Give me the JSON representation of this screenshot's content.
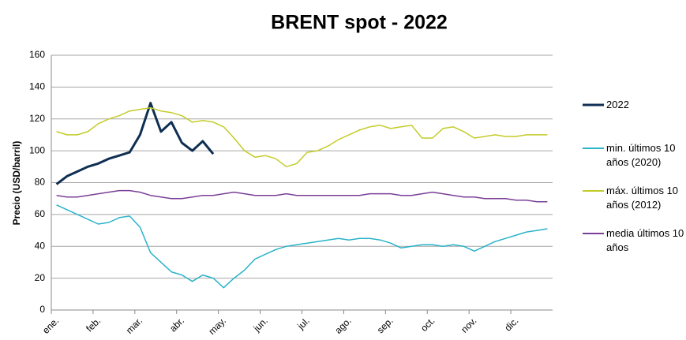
{
  "chart_data": {
    "type": "line",
    "title": "BRENT spot - 2022",
    "y_label": "Precio (USD/barril)",
    "categories": [
      "ene.",
      null,
      null,
      null,
      "feb.",
      null,
      null,
      null,
      "mar.",
      null,
      null,
      null,
      "abr.",
      null,
      null,
      null,
      "may.",
      null,
      null,
      null,
      "jun.",
      null,
      null,
      null,
      "jul.",
      null,
      null,
      null,
      "ago.",
      null,
      null,
      null,
      "sep.",
      null,
      null,
      null,
      "oct.",
      null,
      null,
      null,
      "nov.",
      null,
      null,
      null,
      "dic.",
      null,
      null,
      null
    ],
    "ylim": [
      0,
      160
    ],
    "yticks": [
      0,
      20,
      40,
      60,
      80,
      100,
      120,
      140,
      160
    ],
    "grid": true,
    "legend": "right",
    "series": [
      {
        "name": "2022",
        "color": "#0f2f52",
        "values": [
          79,
          84,
          87,
          90,
          92,
          95,
          97,
          99,
          110,
          130,
          112,
          118,
          105,
          100,
          106,
          98,
          null,
          null,
          null,
          null,
          null,
          null,
          null,
          null,
          null,
          null,
          null,
          null,
          null,
          null,
          null,
          null,
          null,
          null,
          null,
          null,
          null,
          null,
          null,
          null,
          null,
          null,
          null,
          null,
          null,
          null,
          null,
          null
        ]
      },
      {
        "name": "min. últimos 10 años (2020)",
        "color": "#2ab3c9",
        "values": [
          66,
          63,
          60,
          57,
          54,
          55,
          58,
          59,
          52,
          36,
          30,
          24,
          22,
          18,
          22,
          20,
          14,
          20,
          25,
          32,
          35,
          38,
          40,
          41,
          42,
          43,
          44,
          45,
          44,
          45,
          45,
          44,
          42,
          39,
          40,
          41,
          41,
          40,
          41,
          40,
          37,
          40,
          43,
          45,
          47,
          49,
          50,
          51
        ]
      },
      {
        "name": "máx. últimos 10 años (2012)",
        "color": "#c3cc2a",
        "values": [
          112,
          110,
          110,
          112,
          117,
          120,
          122,
          125,
          126,
          127,
          125,
          124,
          122,
          118,
          119,
          118,
          115,
          108,
          100,
          96,
          97,
          95,
          90,
          92,
          99,
          100,
          103,
          107,
          110,
          113,
          115,
          116,
          114,
          115,
          116,
          108,
          108,
          114,
          115,
          112,
          108,
          109,
          110,
          109,
          109,
          110,
          110,
          110
        ]
      },
      {
        "name": "media últimos 10 años",
        "color": "#7b3f98",
        "values": [
          72,
          71,
          71,
          72,
          73,
          74,
          75,
          75,
          74,
          72,
          71,
          70,
          70,
          71,
          72,
          72,
          73,
          74,
          73,
          72,
          72,
          72,
          73,
          72,
          72,
          72,
          72,
          72,
          72,
          72,
          73,
          73,
          73,
          72,
          72,
          73,
          74,
          73,
          72,
          71,
          71,
          70,
          70,
          70,
          69,
          69,
          68,
          68
        ]
      }
    ]
  }
}
